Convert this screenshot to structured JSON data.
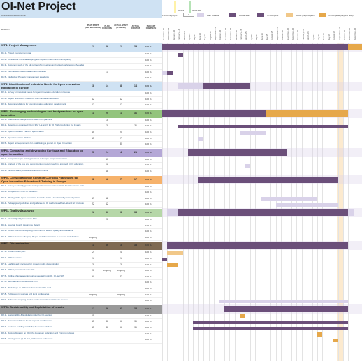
{
  "title": "OI-Net Project",
  "subtitle": "Deliverables and workplan",
  "legend": {
    "highlight_label": "Period Highlight:",
    "period_value": "1",
    "current_label": "current",
    "observed_label": "observed",
    "plan_label": "Plan Duration",
    "actual_start_label": "Actual Start",
    "complete_label": "% Complete",
    "actual_beyond_label": "Actual (beyond plan)",
    "complete_beyond_label": "% Complete (beyond plan)"
  },
  "colors": {
    "plan": "#d9d2e9",
    "actual": "#6b4f7a",
    "beyond": "#e6a84a",
    "beyond_light": "#f1c889"
  },
  "columns": {
    "activity": "ACTIVITY",
    "plan_start": "PLAN START (date and Abbrev)",
    "plan_duration": "PLAN DURATION",
    "actual_start": "ACTUAL START (in Abbrev)",
    "actual_duration": "ACTUAL DURATION",
    "percent_complete": "PERCENT COMPLETE"
  },
  "dates": [
    "November-13",
    "December-13",
    "January-14",
    "February-14",
    "March-14",
    "April-14",
    "May-14",
    "June-14",
    "July-14",
    "August-14",
    "September-14",
    "October-14",
    "November-14",
    "December-14",
    "January-15",
    "February-15",
    "March-15",
    "April-15",
    "May-15",
    "June-15",
    "July-15",
    "August-15",
    "September-15",
    "October-15",
    "November-15",
    "December-15",
    "January-16",
    "February-16",
    "March-16",
    "April-16",
    "May-16",
    "June-16",
    "July-16",
    "August-16",
    "September-16",
    "October-16",
    "November-16",
    "December-16"
  ],
  "rows": [
    {
      "type": "wp",
      "name": "WP1: Project Management",
      "ps": "1",
      "pd": "36",
      "as": "1",
      "ad": "39",
      "pct": "100 %",
      "color": "#cfe2f3"
    },
    {
      "type": "task",
      "name": "D1.1 - Project management plan",
      "ps": "",
      "pd": "",
      "as": "",
      "ad": "",
      "pct": "100 %"
    },
    {
      "type": "task",
      "name": "D1.2 - Contractual financial and progress reports (interim and final reports)",
      "ps": "",
      "pd": "",
      "as": "",
      "ad": "",
      "pct": "100 %"
    },
    {
      "type": "task",
      "name": "D1.3 - Document work of the full partnership meetings and related conferences (Agendas, Reporting of actions and Minutes)",
      "ps": "",
      "pd": "",
      "as": "",
      "ad": "",
      "pct": "100 %"
    },
    {
      "type": "task",
      "name": "D1.4 - Internal web-based collaboration facilities",
      "ps": "",
      "pd": "1",
      "as": "",
      "ad": "",
      "pct": "100 %"
    },
    {
      "type": "task",
      "name": "D1.5 - Intellectual Property management standards",
      "ps": "",
      "pd": "",
      "as": "",
      "ad": "",
      "pct": "100 %"
    },
    {
      "type": "wp",
      "name": "WP2: Identification of Industrial Needs for Open Innovation Education in Europe",
      "ps": "3",
      "pd": "14",
      "as": "8",
      "ad": "14",
      "pct": "100 %",
      "color": "#cfe2f3"
    },
    {
      "type": "task",
      "name": "D2.1 - Survey on industrial needs for open innovation education in Europe",
      "ps": "",
      "pd": "",
      "as": "",
      "ad": "",
      "pct": "100 %"
    },
    {
      "type": "task",
      "name": "D2.2 - Report on industry needs for open innovation education",
      "ps": "12",
      "pd": "",
      "as": "12",
      "ad": "",
      "pct": "100 %"
    },
    {
      "type": "task",
      "name": "D2.3 - Recommendations for open innovation education development",
      "ps": "17",
      "pd": "",
      "as": "17",
      "ad": "",
      "pct": "100 %"
    },
    {
      "type": "wp",
      "name": "WP3 - Exchanging methodologies and best practices on open innovation",
      "ps": "1",
      "pd": "20",
      "as": "1",
      "ad": "36",
      "pct": "100 %",
      "color": "#93c47d"
    },
    {
      "type": "task",
      "name": "D3.1 - Collection of best practices cases from partners",
      "ps": "",
      "pd": "3",
      "as": "",
      "ad": "",
      "pct": "100 %"
    },
    {
      "type": "task",
      "name": "D3.2 - Reports on organised OIA in 3 for HE and 6 for OI Platforms during the 3 years",
      "ps": "",
      "pd": "3",
      "as": "",
      "ad": "36",
      "pct": "100 %"
    },
    {
      "type": "task",
      "name": "D3.3 - Open Innovation Platform specification",
      "ps": "15",
      "pd": "",
      "as": "20",
      "ad": "",
      "pct": "100 %"
    },
    {
      "type": "task",
      "name": "D3.4 - Open Innovation Platform",
      "ps": "15",
      "pd": "",
      "as": "7",
      "ad": "",
      "pct": "100 %"
    },
    {
      "type": "task",
      "name": "D3.5 - Report on requirements for establishing a journal on Open Innovation",
      "ps": "",
      "pd": "",
      "as": "30",
      "ad": "",
      "pct": "100 %"
    },
    {
      "type": "wp",
      "name": "WP4 - Comparing and developing Curricula and Education on open innovation",
      "ps": "5",
      "pd": "24",
      "as": "4",
      "ad": "21",
      "pct": "100 %",
      "color": "#b4a7d6"
    },
    {
      "type": "task",
      "name": "D4.1 - Comparative pre-training curricula in Europe on open innovation",
      "ps": "",
      "pd": "10",
      "as": "",
      "ad": "",
      "pct": "100 %"
    },
    {
      "type": "task",
      "name": "D4.2 - Analysis of the role and deployment of modern teaching approach in OI education",
      "ps": "",
      "pd": "16",
      "as": "",
      "ad": "",
      "pct": "100 %"
    },
    {
      "type": "task",
      "name": "D4.3 - Indicators and processes related to OI EPE",
      "ps": "",
      "pd": "18",
      "as": "",
      "ad": "",
      "pct": "100 %"
    },
    {
      "type": "wp",
      "name": "WP5 - Consolidation of Common Curricula Framework for Open Innovation Education & Training in Europe",
      "ps": "3",
      "pd": "18",
      "as": "7",
      "ad": "17",
      "pct": "100 %",
      "color": "#f6b26b"
    },
    {
      "type": "task",
      "name": "D5.1 - Survey to identify generic and specific competencies portfolio for OI teachers and trainers",
      "ps": "",
      "pd": "",
      "as": "",
      "ad": "",
      "pct": "100 %"
    },
    {
      "type": "task",
      "name": "D5.2 - European C-FT on OI validation",
      "ps": "",
      "pd": "",
      "as": "",
      "ad": "",
      "pct": "100 %"
    },
    {
      "type": "task",
      "name": "D5.3 - Piloting of the Open Innovation Curricula in HE - transferability and adaptation",
      "ps": "19",
      "pd": "12",
      "as": "",
      "ad": "",
      "pct": "100 %"
    },
    {
      "type": "task",
      "name": "D5.4 - Pedagogical guidelines and guidance for OI teachers and for HEI and EU institutions",
      "ps": "22",
      "pd": "12",
      "as": "",
      "ad": "",
      "pct": "100 %"
    },
    {
      "type": "wp",
      "name": "WP6 - Quality Assurance",
      "ps": "1",
      "pd": "36",
      "as": "3",
      "ad": "33",
      "pct": "100 %",
      "color": "#b6d7a8"
    },
    {
      "type": "task",
      "name": "D6.1 - Internal Quality Assurance Plan",
      "ps": "",
      "pd": "3",
      "as": "",
      "ad": "",
      "pct": "100 %"
    },
    {
      "type": "task",
      "name": "D6.2 - External Quality Assurance Report",
      "ps": "",
      "pd": "",
      "as": "",
      "ad": "",
      "pct": "100 %"
    },
    {
      "type": "task",
      "name": "D6.3 - OI-Net Outcomes Mapping Instrument to assess quality and relevance",
      "ps": "",
      "pd": "",
      "as": "",
      "ad": "",
      "pct": "100 %"
    },
    {
      "type": "task",
      "name": "D6.4 - OI-Net Outcome Mapping Report and dissemination to relevant stakeholders",
      "ps": "ongoing",
      "pd": "",
      "as": "",
      "ad": "",
      "pct": "100 %"
    },
    {
      "type": "wp",
      "name": "WP7 - Dissemination",
      "ps": "1",
      "pd": "36",
      "as": "3",
      "ad": "33",
      "pct": "100 %",
      "color": "#7f6a52"
    },
    {
      "type": "task",
      "name": "D7.1 - Dissemination plan",
      "ps": "2",
      "pd": "",
      "as": "4",
      "ad": "",
      "pct": "100 %"
    },
    {
      "type": "task",
      "name": "D7.2 - OI-Net website",
      "ps": "1",
      "pd": "",
      "as": "1",
      "ad": "",
      "pct": "100 %"
    },
    {
      "type": "task",
      "name": "D7.3 - Leaflets and brochures for project results dissemination",
      "ps": "3",
      "pd": "",
      "as": "3",
      "ad": "",
      "pct": "100 %"
    },
    {
      "type": "task",
      "name": "D7.4 - OI-Net promotional materials",
      "ps": "3",
      "pd": "ongoing",
      "as": "ongoing",
      "ad": "",
      "pct": "100 %"
    },
    {
      "type": "task",
      "name": "D7.5 - Outline of an academic journal specializing in OI, OI-Net SIP",
      "ps": "6",
      "pd": "",
      "as": "22",
      "ad": "",
      "pct": "100 %"
    },
    {
      "type": "task",
      "name": "D7.6 - Seminars and Conferences in OI",
      "ps": "",
      "pd": "",
      "as": "",
      "ad": "",
      "pct": "100 %"
    },
    {
      "type": "task",
      "name": "D7.7 - Workshops on OI for teachers and for OE staff",
      "ps": "",
      "pd": "",
      "as": "",
      "ad": "",
      "pct": "100 %"
    },
    {
      "type": "task",
      "name": "D7.8 - Publication in journals and local conferences",
      "ps": "ongoing",
      "pd": "",
      "as": "ongoing",
      "ad": "",
      "pct": "100 %"
    },
    {
      "type": "task",
      "name": "D7.9 - Reference mapping studies on the Innovation curriculum website",
      "ps": "",
      "pd": "",
      "as": "",
      "ad": "",
      "pct": "100 %"
    },
    {
      "type": "wp",
      "name": "WP8 - Sustainability and Exploitation of results",
      "ps": "12",
      "pd": "36",
      "as": "6",
      "ad": "33",
      "pct": "100 %",
      "color": "#999999"
    },
    {
      "type": "task",
      "name": "D8.1 - Sustainability & Exploitation plan for OI-learning",
      "ps": "15",
      "pd": "",
      "as": "",
      "ad": "",
      "pct": "100 %"
    },
    {
      "type": "task",
      "name": "D8.2 - Recommendations for EU support mechanisms",
      "ps": "15",
      "pd": "36",
      "as": "6",
      "ad": "36",
      "pct": "100 %"
    },
    {
      "type": "task",
      "name": "D8.3 - Evidence building and Policy Recommendations",
      "ps": "15",
      "pd": "36",
      "as": "6",
      "ad": "36",
      "pct": "100 %"
    },
    {
      "type": "task",
      "name": "D8.4 - Book publication on OI in the European Education and Training network",
      "ps": "",
      "pd": "",
      "as": "",
      "ad": "",
      "pct": "100 %"
    },
    {
      "type": "task",
      "name": "D8.5 - Closing event @ OI-Net, OI Summer conference",
      "ps": "",
      "pd": "",
      "as": "",
      "ad": "",
      "pct": "100 %"
    }
  ]
}
